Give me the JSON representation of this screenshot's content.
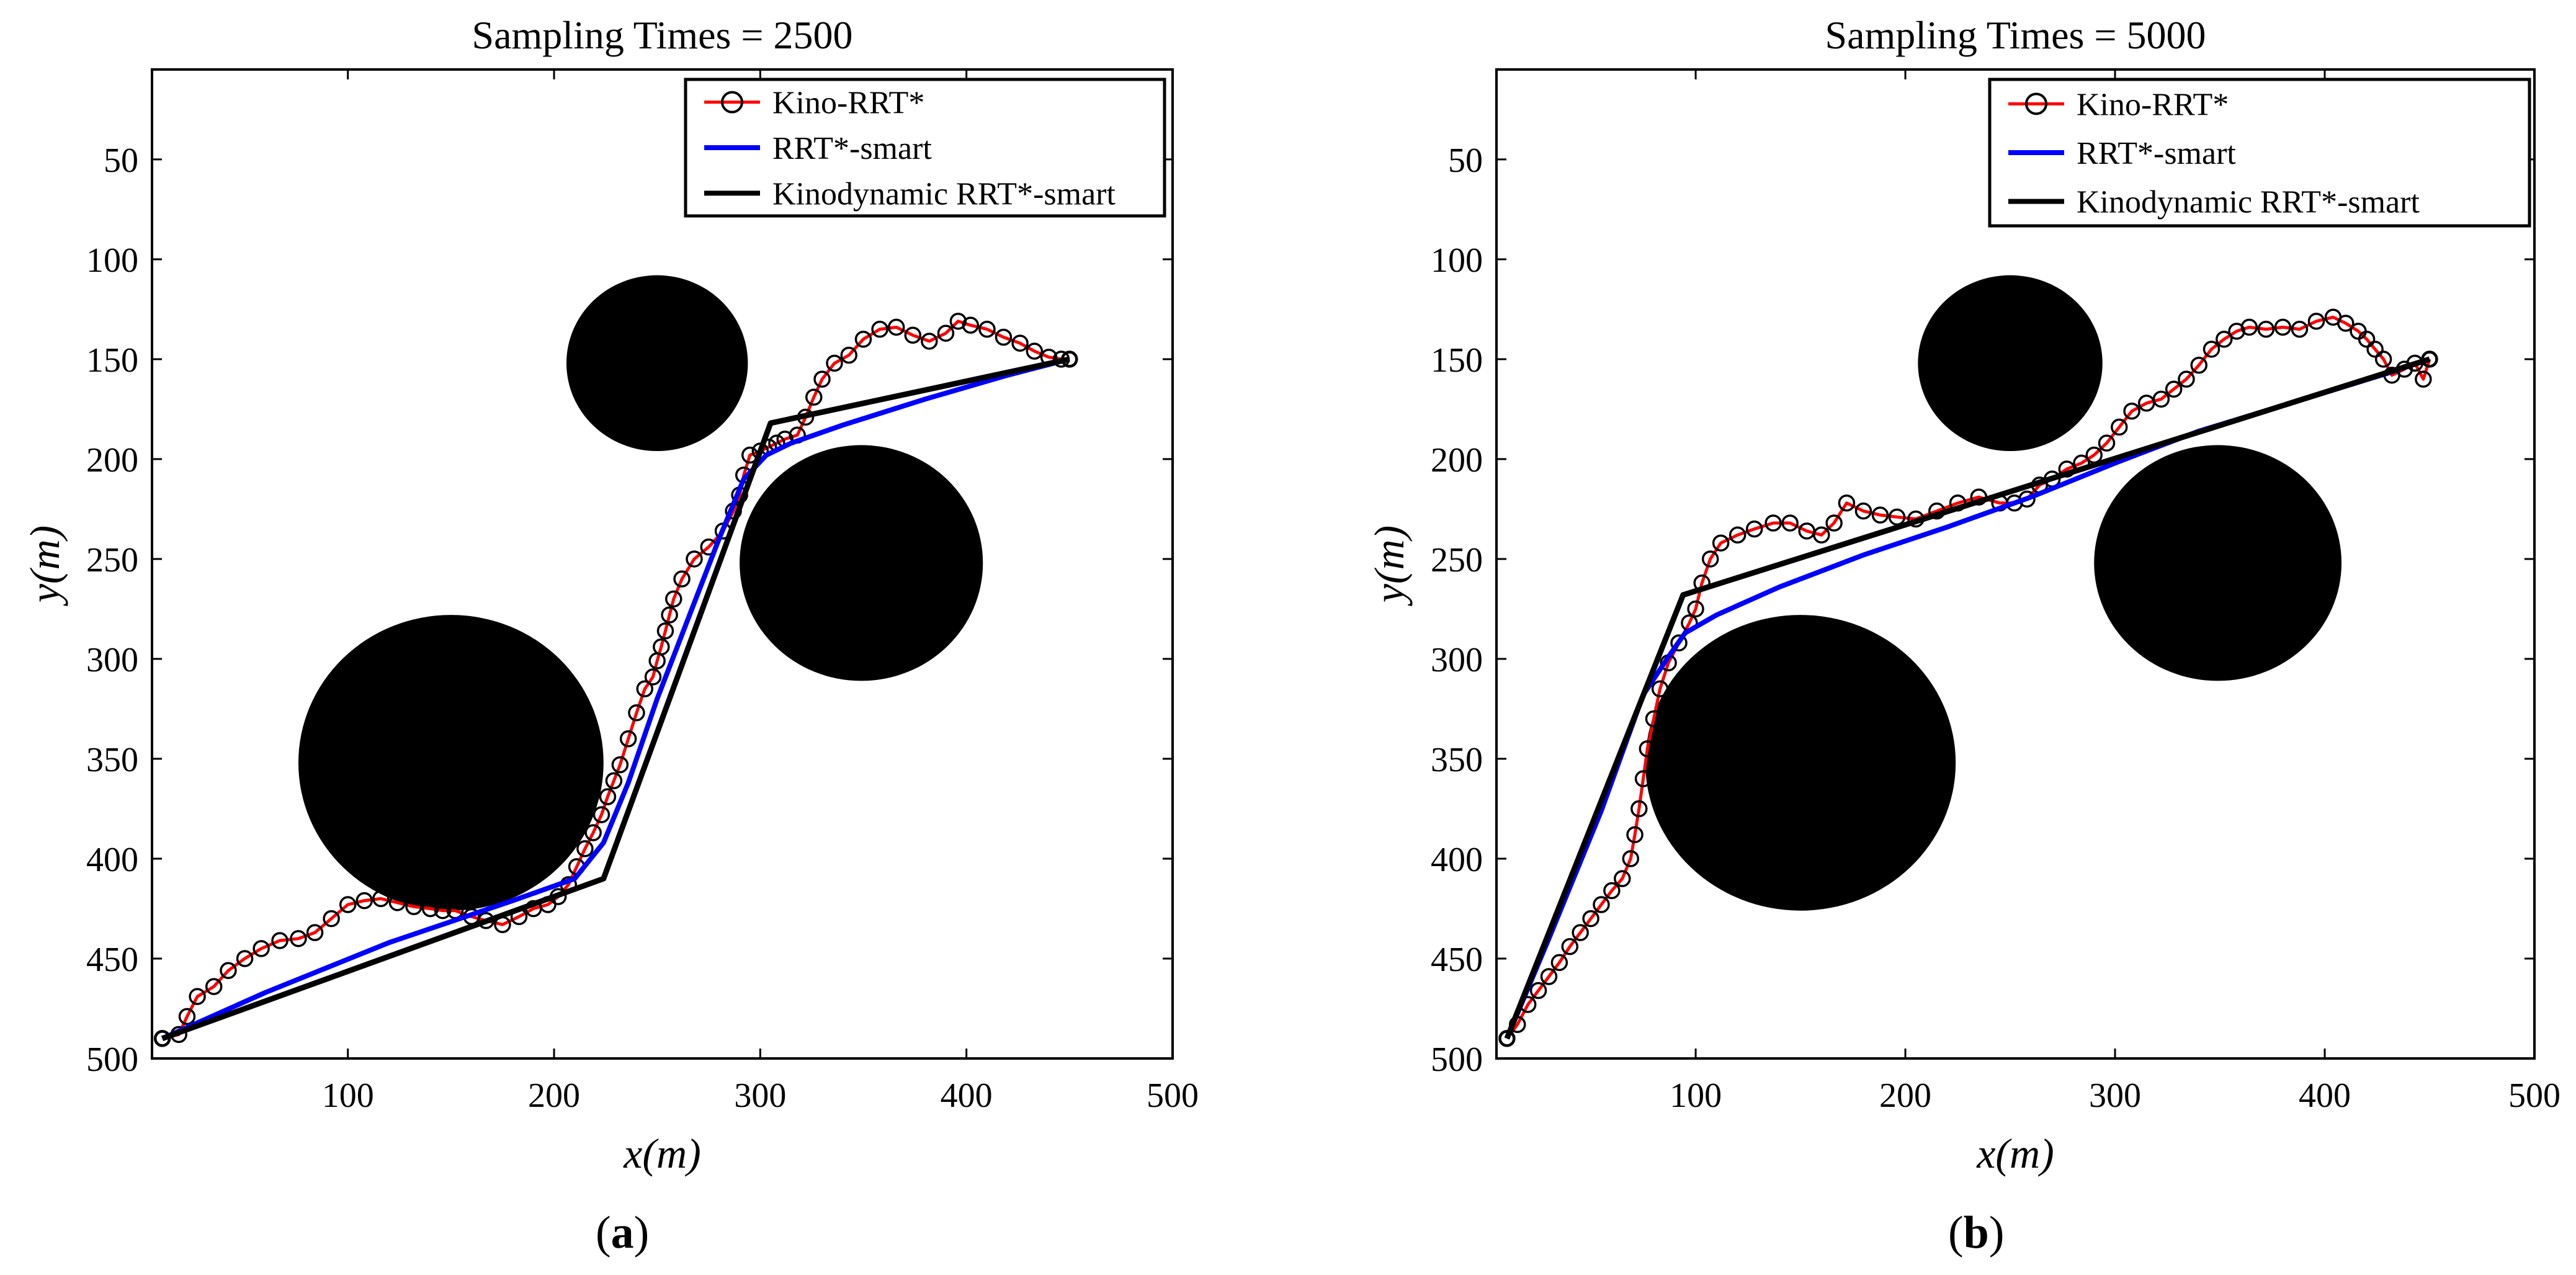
{
  "panel_labels": [
    {
      "open": "(",
      "letter": "a",
      "close": ")"
    },
    {
      "open": "(",
      "letter": "b",
      "close": ")"
    }
  ],
  "chart_data": [
    {
      "type": "line",
      "title": "Sampling Times = 2500",
      "xlabel": "x(m)",
      "ylabel": "y(m)",
      "xlim": [
        5,
        500
      ],
      "ylim": [
        5,
        500
      ],
      "y_reversed": true,
      "xticks": [
        100,
        200,
        300,
        400,
        500
      ],
      "yticks": [
        50,
        100,
        150,
        200,
        250,
        300,
        350,
        400,
        450,
        500
      ],
      "grid": false,
      "legend_position": "top-right",
      "obstacles": [
        {
          "name": "small obstacle",
          "cx": 250,
          "cy": 152,
          "r": 44
        },
        {
          "name": "medium obstacle",
          "cx": 349,
          "cy": 252,
          "r": 59
        },
        {
          "name": "large obstacle",
          "cx": 150,
          "cy": 352,
          "r": 74
        }
      ],
      "series": [
        {
          "name": "Kino-RRT*",
          "color": "#ff0000",
          "marker": "circle",
          "x": [
            10,
            18,
            22,
            27,
            35,
            42,
            50,
            58,
            67,
            76,
            84,
            92,
            100,
            108,
            116,
            124,
            132,
            140,
            146,
            152,
            160,
            167,
            175,
            183,
            190,
            197,
            202,
            207,
            211,
            215,
            219,
            223,
            226,
            229,
            232,
            236,
            240,
            244,
            248,
            250,
            252,
            254,
            256,
            258,
            262,
            268,
            275,
            282,
            287,
            290,
            292,
            295,
            300,
            304,
            308,
            312,
            318,
            322,
            326,
            330,
            336,
            343,
            350,
            358,
            366,
            374,
            382,
            390,
            396,
            402,
            410,
            418,
            426,
            433,
            440,
            446,
            450
          ],
          "y": [
            490,
            488,
            479,
            469,
            464,
            456,
            450,
            445,
            441,
            440,
            437,
            430,
            423,
            421,
            420,
            422,
            424,
            425,
            426,
            426,
            429,
            431,
            433,
            429,
            425,
            423,
            419,
            413,
            404,
            395,
            387,
            378,
            369,
            361,
            353,
            340,
            327,
            315,
            309,
            301,
            294,
            286,
            278,
            270,
            260,
            250,
            244,
            236,
            226,
            218,
            208,
            198,
            196,
            194,
            192,
            190,
            188,
            179,
            169,
            160,
            152,
            148,
            140,
            135,
            134,
            138,
            141,
            137,
            131,
            133,
            135,
            139,
            142,
            146,
            149,
            150,
            150
          ]
        },
        {
          "name": "RRT*-smart",
          "color": "#0000ff",
          "x": [
            10,
            60,
            120,
            180,
            210,
            224,
            236,
            250,
            265,
            280,
            292,
            303,
            315,
            340,
            380,
            420,
            450
          ],
          "y": [
            490,
            467,
            442,
            421,
            410,
            392,
            362,
            320,
            280,
            240,
            210,
            198,
            192,
            183,
            170,
            158,
            150
          ]
        },
        {
          "name": "Kinodynamic RRT*-smart",
          "color": "#000000",
          "x": [
            10,
            224,
            305,
            450
          ],
          "y": [
            490,
            410,
            182,
            150
          ]
        }
      ]
    },
    {
      "type": "line",
      "title": "Sampling Times = 5000",
      "xlabel": "x(m)",
      "ylabel": "y(m)",
      "xlim": [
        5,
        500
      ],
      "ylim": [
        5,
        500
      ],
      "y_reversed": true,
      "xticks": [
        100,
        200,
        300,
        400,
        500
      ],
      "yticks": [
        50,
        100,
        150,
        200,
        250,
        300,
        350,
        400,
        450,
        500
      ],
      "grid": false,
      "legend_position": "top-right",
      "obstacles": [
        {
          "name": "small obstacle",
          "cx": 250,
          "cy": 152,
          "r": 44
        },
        {
          "name": "medium obstacle",
          "cx": 349,
          "cy": 252,
          "r": 59
        },
        {
          "name": "large obstacle",
          "cx": 150,
          "cy": 352,
          "r": 74
        }
      ],
      "series": [
        {
          "name": "Kino-RRT*",
          "color": "#ff0000",
          "marker": "circle",
          "x": [
            10,
            15,
            20,
            25,
            30,
            35,
            40,
            45,
            50,
            55,
            60,
            65,
            69,
            71,
            73,
            75,
            77,
            80,
            83,
            87,
            92,
            97,
            100,
            103,
            107,
            112,
            120,
            128,
            137,
            145,
            153,
            160,
            166,
            172,
            180,
            188,
            196,
            205,
            215,
            225,
            235,
            245,
            252,
            258,
            264,
            270,
            277,
            284,
            290,
            296,
            302,
            308,
            315,
            322,
            328,
            334,
            340,
            346,
            352,
            358,
            364,
            372,
            380,
            388,
            396,
            404,
            410,
            416,
            420,
            424,
            428,
            432,
            438,
            443,
            447,
            450
          ],
          "y": [
            490,
            483,
            473,
            466,
            459,
            452,
            444,
            437,
            430,
            423,
            416,
            410,
            400,
            388,
            375,
            360,
            345,
            330,
            315,
            302,
            292,
            282,
            275,
            262,
            250,
            242,
            238,
            235,
            232,
            232,
            236,
            238,
            232,
            222,
            226,
            228,
            229,
            230,
            226,
            222,
            219,
            222,
            222,
            220,
            213,
            210,
            205,
            202,
            198,
            192,
            184,
            176,
            172,
            170,
            165,
            160,
            153,
            145,
            140,
            136,
            134,
            135,
            134,
            135,
            131,
            129,
            132,
            136,
            140,
            145,
            150,
            158,
            155,
            152,
            160,
            150
          ]
        },
        {
          "name": "RRT*-smart",
          "color": "#0000ff",
          "x": [
            10,
            30,
            55,
            75,
            87,
            95,
            110,
            140,
            180,
            220,
            260,
            300,
            340,
            390,
            430,
            450
          ],
          "y": [
            490,
            440,
            376,
            318,
            299,
            287,
            278,
            264,
            248,
            234,
            219,
            202,
            186,
            170,
            157,
            150
          ]
        },
        {
          "name": "Kinodynamic RRT*-smart",
          "color": "#000000",
          "x": [
            10,
            94,
            450
          ],
          "y": [
            490,
            268,
            150
          ]
        }
      ]
    }
  ]
}
